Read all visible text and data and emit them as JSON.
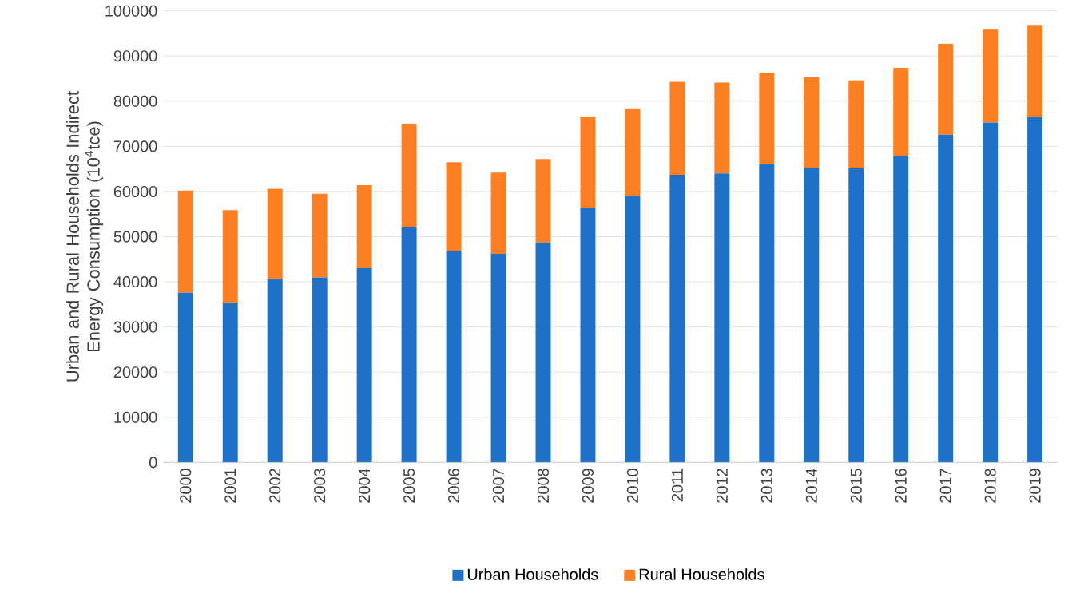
{
  "chart_data": {
    "type": "bar",
    "stacked": true,
    "ylabel": "Urban and Rural Households Indirect Energy Consumption (10$^{4}$tce)",
    "categories": [
      "2000",
      "2001",
      "2002",
      "2003",
      "2004",
      "2005",
      "2006",
      "2007",
      "2008",
      "2009",
      "2010",
      "2011",
      "2012",
      "2013",
      "2014",
      "2015",
      "2016",
      "2017",
      "2018",
      "2019"
    ],
    "series": [
      {
        "name": "Urban Households",
        "color": "#1f70c8",
        "values": [
          37600,
          35400,
          40700,
          41000,
          43000,
          52100,
          46900,
          46200,
          48700,
          56400,
          59000,
          63700,
          64000,
          66000,
          65300,
          65100,
          67900,
          72600,
          75300,
          76500
        ]
      },
      {
        "name": "Rural Households",
        "color": "#fd7f23",
        "values": [
          22600,
          20500,
          19900,
          18500,
          18400,
          22900,
          19600,
          18000,
          18500,
          20200,
          19400,
          20600,
          20100,
          20300,
          20000,
          19500,
          19500,
          20100,
          20700,
          20400
        ]
      }
    ],
    "ylim": [
      0,
      100000
    ],
    "yticks": [
      0,
      10000,
      20000,
      30000,
      40000,
      50000,
      60000,
      70000,
      80000,
      90000,
      100000
    ],
    "grid": "y",
    "legend": "bottom"
  }
}
